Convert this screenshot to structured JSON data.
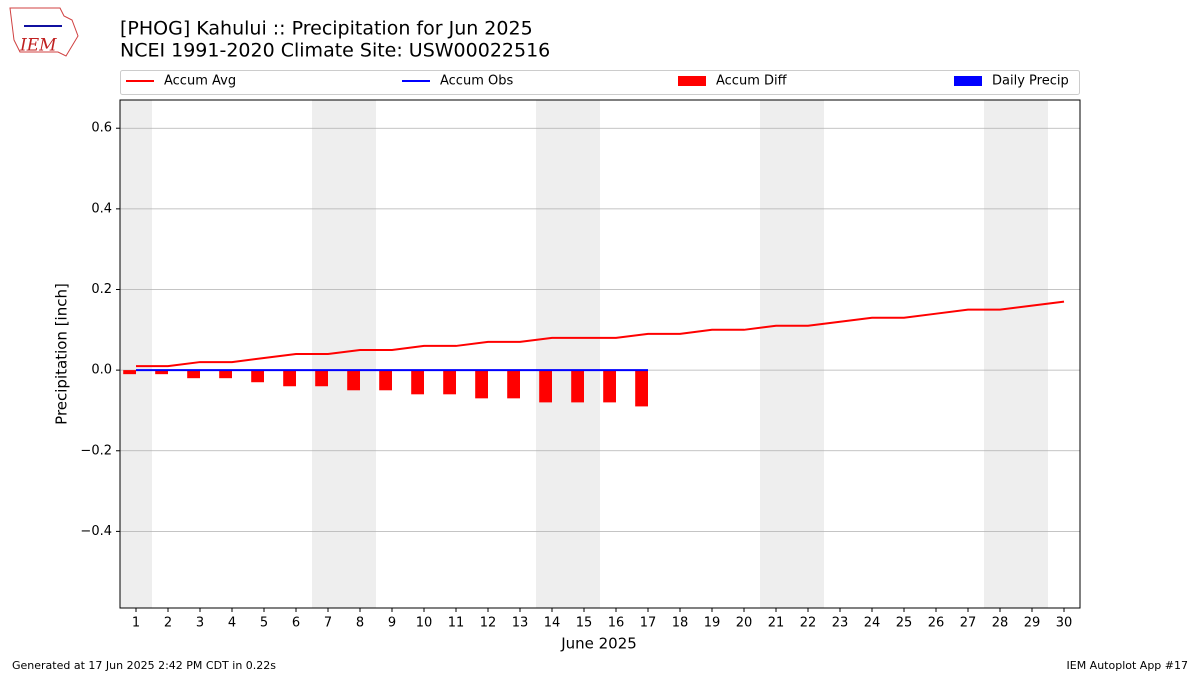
{
  "logo_text": "IEM",
  "footer_left": "Generated at 17 Jun 2025 2:42 PM CDT in 0.22s",
  "footer_right": "IEM Autoplot App #17",
  "chart_data": {
    "type": "line",
    "title": "[PHOG] Kahului :: Precipitation for Jun 2025",
    "subtitle": "NCEI 1991-2020 Climate Site: USW00022516",
    "x_label": "June 2025",
    "y_label": "Precipitation [inch]",
    "x": [
      1,
      2,
      3,
      4,
      5,
      6,
      7,
      8,
      9,
      10,
      11,
      12,
      13,
      14,
      15,
      16,
      17,
      18,
      19,
      20,
      21,
      22,
      23,
      24,
      25,
      26,
      27,
      28,
      29,
      30
    ],
    "xlim": [
      0.5,
      30.5
    ],
    "ylim": [
      -0.59,
      0.67
    ],
    "yticks": [
      {
        "value": -0.4,
        "label": "−0.4"
      },
      {
        "value": -0.2,
        "label": "−0.2"
      },
      {
        "value": 0,
        "label": "0.0"
      },
      0.2,
      0.4,
      0.6
    ],
    "grid": true,
    "series": [
      {
        "name": "Accum Avg",
        "color": "#ff0000",
        "kind": "line",
        "values": [
          0.01,
          0.01,
          0.02,
          0.02,
          0.03,
          0.04,
          0.04,
          0.05,
          0.05,
          0.06,
          0.06,
          0.07,
          0.07,
          0.08,
          0.08,
          0.08,
          0.09,
          0.09,
          0.1,
          0.1,
          0.11,
          0.11,
          0.12,
          0.13,
          0.13,
          0.14,
          0.15,
          0.15,
          0.16,
          0.17
        ]
      },
      {
        "name": "Accum Obs",
        "color": "#0000ff",
        "kind": "line",
        "values": [
          0,
          0,
          0,
          0,
          0,
          0,
          0,
          0,
          0,
          0,
          0,
          0,
          0,
          0,
          0,
          0,
          0,
          null,
          null,
          null,
          null,
          null,
          null,
          null,
          null,
          null,
          null,
          null,
          null,
          null
        ]
      },
      {
        "name": "Accum Diff",
        "color": "#ff0000",
        "kind": "bar",
        "values": [
          -0.01,
          -0.01,
          -0.02,
          -0.02,
          -0.03,
          -0.04,
          -0.04,
          -0.05,
          -0.05,
          -0.06,
          -0.06,
          -0.07,
          -0.07,
          -0.08,
          -0.08,
          -0.08,
          -0.09,
          null,
          null,
          null,
          null,
          null,
          null,
          null,
          null,
          null,
          null,
          null,
          null,
          null
        ]
      },
      {
        "name": "Daily Precip",
        "color": "#0000ff",
        "kind": "bar",
        "values": [
          0,
          0,
          0,
          0,
          0,
          0,
          0,
          0,
          0,
          0,
          0,
          0,
          0,
          0,
          0,
          0,
          0,
          null,
          null,
          null,
          null,
          null,
          null,
          null,
          null,
          null,
          null,
          null,
          null,
          null
        ]
      }
    ]
  }
}
